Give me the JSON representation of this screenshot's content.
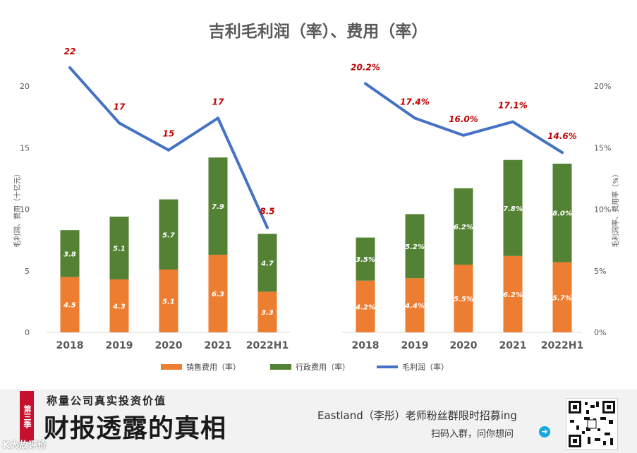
{
  "chart_data": [
    {
      "type": "bar",
      "stacked": true,
      "title": "吉利毛利润（率）、费用（率）",
      "ylabel": "毛利润、费用（十亿元）",
      "ylim": [
        0,
        20
      ],
      "yticks": [
        "0",
        "5",
        "10",
        "15",
        "20"
      ],
      "categories": [
        "2018",
        "2019",
        "2020",
        "2021",
        "2022H1"
      ],
      "series": [
        {
          "name": "销售费用（率）",
          "kind": "bar",
          "color": "#ed7d31",
          "values": [
            4.5,
            4.3,
            5.1,
            6.3,
            3.3
          ],
          "labels": [
            "4.5",
            "4.3",
            "5.1",
            "6.3",
            "3.3"
          ]
        },
        {
          "name": "行政费用（率）",
          "kind": "bar",
          "color": "#548235",
          "values": [
            3.8,
            5.1,
            5.7,
            7.9,
            4.7
          ],
          "labels": [
            "3.8",
            "5.1",
            "5.7",
            "7.9",
            "4.7"
          ]
        },
        {
          "name": "毛利润（率）",
          "kind": "line",
          "color": "#4472c4",
          "values": [
            21.5,
            17.0,
            14.8,
            17.4,
            8.5
          ],
          "labels": [
            "22",
            "17",
            "15",
            "17",
            "8.5"
          ]
        }
      ]
    },
    {
      "type": "bar",
      "stacked": true,
      "ylabel": "毛利润率、费用率（%）",
      "ylim": [
        0,
        20
      ],
      "yticks": [
        "0%",
        "5%",
        "10%",
        "15%",
        "20%"
      ],
      "categories": [
        "2018",
        "2019",
        "2020",
        "2021",
        "2022H1"
      ],
      "series": [
        {
          "name": "销售费用（率）",
          "kind": "bar",
          "color": "#ed7d31",
          "values": [
            4.2,
            4.4,
            5.5,
            6.2,
            5.7
          ],
          "labels": [
            "4.2%",
            "4.4%",
            "5.5%",
            "6.2%",
            "5.7%"
          ]
        },
        {
          "name": "行政费用（率）",
          "kind": "bar",
          "color": "#548235",
          "values": [
            3.5,
            5.2,
            6.2,
            7.8,
            8.0
          ],
          "labels": [
            "3.5%",
            "5.2%",
            "6.2%",
            "7.8%",
            "8.0%"
          ]
        },
        {
          "name": "毛利润（率）",
          "kind": "line",
          "color": "#4472c4",
          "values": [
            20.2,
            17.4,
            16.0,
            17.1,
            14.6
          ],
          "labels": [
            "20.2%",
            "17.4%",
            "16.0%",
            "17.1%",
            "14.6%"
          ]
        }
      ]
    }
  ],
  "legend": [
    "销售费用（率）",
    "行政费用（率）",
    "毛利润（率）"
  ],
  "banner": {
    "season_tag": "第三季",
    "subtitle": "称量公司真实投资价值",
    "main_title": "财报透露的真相",
    "recruit_text": "Eastland（李彤）老师粉丝群限时招募ing",
    "scan_text": "扫码入群，问你想问",
    "logo_text": "K大故评价"
  }
}
